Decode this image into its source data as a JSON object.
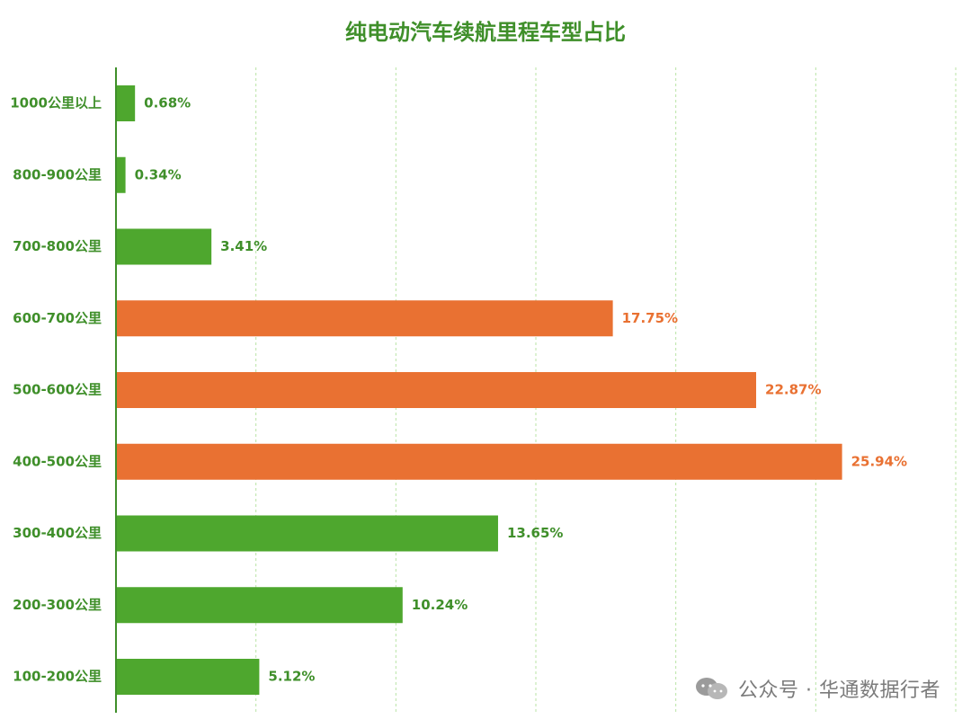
{
  "colors": {
    "title": "#3f8f2a",
    "green": "#4ea72e",
    "orange": "#e97132",
    "axis": "#3f8f2a",
    "grid": "#b9e3a5"
  },
  "chart_data": {
    "type": "bar",
    "orientation": "horizontal",
    "title": "纯电动汽车续航里程车型占比",
    "categories": [
      "1000公里以上",
      "800-900公里",
      "700-800公里",
      "600-700公里",
      "500-600公里",
      "400-500公里",
      "300-400公里",
      "200-300公里",
      "100-200公里"
    ],
    "values": [
      0.68,
      0.34,
      3.41,
      17.75,
      22.87,
      25.94,
      13.65,
      10.24,
      5.12
    ],
    "value_labels": [
      "0.68%",
      "0.34%",
      "3.41%",
      "17.75%",
      "22.87%",
      "25.94%",
      "13.65%",
      "10.24%",
      "5.12%"
    ],
    "bar_colors": [
      "green",
      "green",
      "green",
      "orange",
      "orange",
      "orange",
      "green",
      "green",
      "green"
    ],
    "xlim": [
      0,
      30
    ],
    "grid": true,
    "grid_step": 5
  },
  "watermark": {
    "icon": "wechat-icon",
    "text": "公众号 · 华通数据行者"
  }
}
